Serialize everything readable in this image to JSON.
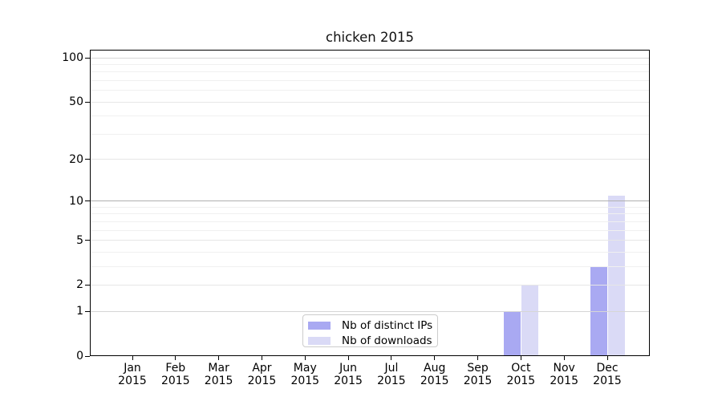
{
  "chart_data": {
    "type": "bar",
    "title": "chicken 2015",
    "x_months": [
      "Jan",
      "Feb",
      "Mar",
      "Apr",
      "May",
      "Jun",
      "Jul",
      "Aug",
      "Sep",
      "Oct",
      "Nov",
      "Dec"
    ],
    "x_year": "2015",
    "series": [
      {
        "name": "Nb of distinct IPs",
        "color": "#a9a9f2",
        "values": [
          0,
          0,
          0,
          0,
          0,
          0,
          0,
          0,
          0,
          1,
          0,
          3
        ]
      },
      {
        "name": "Nb of downloads",
        "color": "#dadaf6",
        "values": [
          0,
          0,
          0,
          0,
          0,
          0,
          0,
          0,
          0,
          2,
          0,
          11
        ]
      }
    ],
    "yscale": "log1p",
    "ylim": [
      0,
      113
    ],
    "y_ticks": [
      0,
      1,
      2,
      5,
      10,
      20,
      50,
      100
    ],
    "y_minor_gridlines": [
      3,
      4,
      6,
      7,
      8,
      9,
      30,
      40,
      60,
      70,
      80,
      90
    ],
    "grid": true,
    "legend_position": "lower center",
    "colors": {
      "grid_minor": "#f0f0f0",
      "grid_major": "#e6e6e6",
      "grid_power10": "#d6d6d6",
      "grid_ten": "#b0b0b0",
      "axis": "#000000",
      "background": "#ffffff"
    }
  }
}
